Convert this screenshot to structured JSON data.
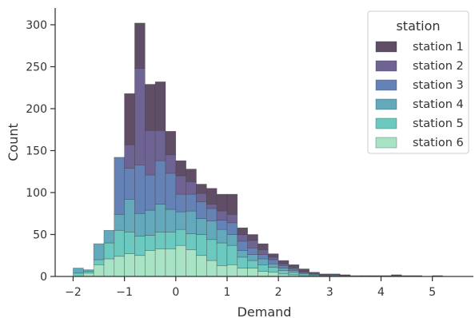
{
  "chart_data": {
    "type": "bar",
    "stacked": true,
    "histogram": true,
    "bin_width": 0.2,
    "xlabel": "Demand",
    "ylabel": "Count",
    "xlim": [
      -2.35,
      5.8
    ],
    "ylim": [
      0,
      320
    ],
    "x_ticks": [
      -2,
      -1,
      0,
      1,
      2,
      3,
      4,
      5
    ],
    "y_ticks": [
      0,
      50,
      100,
      150,
      200,
      250,
      300
    ],
    "legend": {
      "title": "station",
      "position": "top-right"
    },
    "grid": false,
    "bin_starts": [
      -2.0,
      -1.8,
      -1.6,
      -1.4,
      -1.2,
      -1.0,
      -0.8,
      -0.6,
      -0.4,
      -0.2,
      0.0,
      0.2,
      0.4,
      0.6,
      0.8,
      1.0,
      1.2,
      1.4,
      1.6,
      1.8,
      2.0,
      2.2,
      2.4,
      2.6,
      2.8,
      3.0,
      3.2,
      3.4,
      3.6,
      3.8,
      4.0,
      4.2,
      4.4,
      4.6,
      4.8,
      5.0,
      5.2
    ],
    "series": [
      {
        "name": "station 6",
        "color": "#a8e3c6",
        "values": [
          0,
          4,
          14,
          21,
          24,
          27,
          25,
          31,
          33,
          33,
          37,
          32,
          25,
          19,
          13,
          14,
          10,
          10,
          6,
          5,
          3,
          2,
          1,
          1,
          0,
          0,
          0,
          0,
          0,
          0,
          0,
          0,
          0,
          0,
          0,
          0,
          0
        ]
      },
      {
        "name": "station 5",
        "color": "#6cc9c0",
        "values": [
          4,
          2,
          6,
          19,
          31,
          26,
          23,
          18,
          20,
          20,
          19,
          19,
          25,
          25,
          27,
          23,
          13,
          9,
          8,
          6,
          4,
          3,
          2,
          1,
          0,
          0,
          0,
          0,
          0,
          0,
          0,
          0,
          0,
          0,
          0,
          0,
          0
        ]
      },
      {
        "name": "station 4",
        "color": "#63a8bb",
        "values": [
          6,
          2,
          19,
          15,
          19,
          39,
          27,
          30,
          33,
          27,
          21,
          27,
          19,
          22,
          16,
          13,
          8,
          7,
          7,
          4,
          3,
          2,
          1,
          0,
          1,
          1,
          0,
          0,
          0,
          0,
          0,
          0,
          0,
          0,
          0,
          0,
          0
        ]
      },
      {
        "name": "station 3",
        "color": "#6482b5",
        "values": [
          0,
          0,
          0,
          0,
          68,
          37,
          58,
          42,
          52,
          43,
          21,
          20,
          20,
          15,
          11,
          14,
          11,
          8,
          5,
          5,
          3,
          2,
          1,
          1,
          0,
          1,
          1,
          1,
          0,
          0,
          0,
          0,
          0,
          0,
          0,
          0,
          0
        ]
      },
      {
        "name": "station 2",
        "color": "#6e6393",
        "values": [
          0,
          0,
          0,
          0,
          0,
          28,
          115,
          53,
          36,
          22,
          22,
          15,
          10,
          5,
          11,
          10,
          8,
          9,
          6,
          3,
          2,
          2,
          1,
          1,
          1,
          0,
          0,
          0,
          0,
          0,
          0,
          0,
          0,
          0,
          0,
          0,
          0
        ]
      },
      {
        "name": "station 1",
        "color": "#5f4e66",
        "values": [
          0,
          0,
          0,
          0,
          0,
          61,
          54,
          55,
          58,
          28,
          18,
          15,
          11,
          19,
          20,
          24,
          8,
          7,
          7,
          4,
          4,
          3,
          3,
          1,
          1,
          1,
          1,
          0,
          1,
          1,
          1,
          2,
          1,
          1,
          0,
          1,
          0
        ]
      }
    ]
  }
}
